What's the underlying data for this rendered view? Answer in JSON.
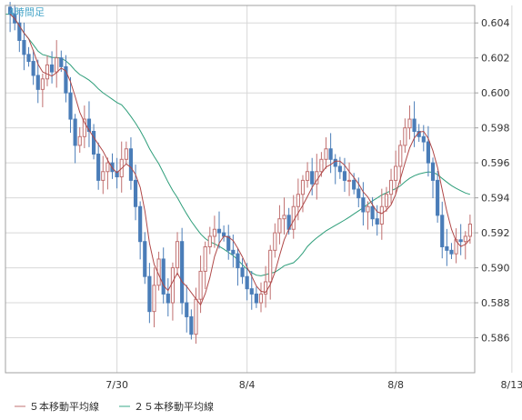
{
  "chart_data": {
    "type": "candlestick",
    "title": "4時間足",
    "ylim": [
      0.584,
      0.605
    ],
    "y_ticks": [
      0.586,
      0.588,
      0.59,
      0.592,
      0.594,
      0.596,
      0.598,
      0.6,
      0.602,
      0.604
    ],
    "x_labels": [
      {
        "index": 23,
        "label": "7/30"
      },
      {
        "index": 51,
        "label": "8/4"
      },
      {
        "index": 83,
        "label": "8/8"
      },
      {
        "index": 108,
        "label": "8/13"
      }
    ],
    "grid": true,
    "legend": {
      "placement": "bottom",
      "items": [
        {
          "label": "５本移動平均線",
          "color": "#c07070"
        },
        {
          "label": "２５本移動平均線",
          "color": "#3aa88a"
        }
      ]
    },
    "colors": {
      "up": "#c07070",
      "down": "#4a7db8",
      "ma5": "#b04848",
      "ma25": "#2e9e7a",
      "grid": "#d8d8d8",
      "frame": "#a0a0a0"
    },
    "closes": [
      0.6045,
      0.604,
      0.603,
      0.6022,
      0.6018,
      0.601,
      0.6002,
      0.6008,
      0.6016,
      0.6012,
      0.602,
      0.6015,
      0.6,
      0.5985,
      0.597,
      0.5975,
      0.5985,
      0.5978,
      0.5965,
      0.595,
      0.5955,
      0.596,
      0.5955,
      0.5952,
      0.5962,
      0.5968,
      0.595,
      0.5935,
      0.5915,
      0.5895,
      0.5875,
      0.589,
      0.5905,
      0.5885,
      0.588,
      0.59,
      0.5915,
      0.588,
      0.5872,
      0.5862,
      0.5882,
      0.5898,
      0.5912,
      0.5918,
      0.5922,
      0.592,
      0.5918,
      0.591,
      0.5908,
      0.59,
      0.5895,
      0.5888,
      0.5885,
      0.588,
      0.5885,
      0.5892,
      0.591,
      0.592,
      0.5928,
      0.593,
      0.5922,
      0.5935,
      0.5942,
      0.595,
      0.5955,
      0.5948,
      0.5955,
      0.5962,
      0.5968,
      0.5962,
      0.5958,
      0.5955,
      0.595,
      0.595,
      0.5945,
      0.594,
      0.5932,
      0.5935,
      0.5928,
      0.5925,
      0.5935,
      0.5942,
      0.595,
      0.5958,
      0.597,
      0.598,
      0.5985,
      0.5978,
      0.5975,
      0.5972,
      0.596,
      0.595,
      0.593,
      0.5912,
      0.591,
      0.5908,
      0.5916,
      0.5915,
      0.5918,
      0.5925
    ]
  }
}
